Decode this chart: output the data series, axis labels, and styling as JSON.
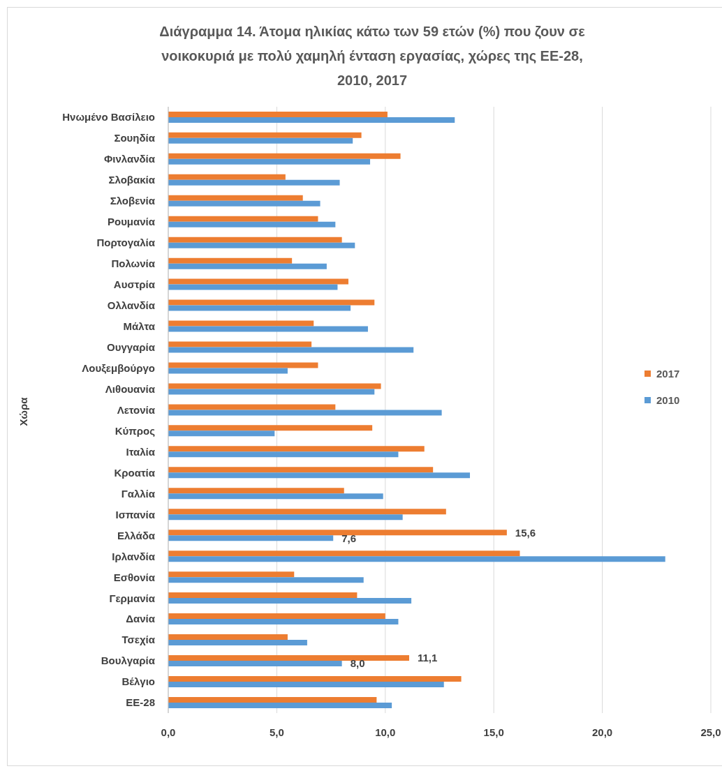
{
  "chart_data": {
    "type": "bar",
    "orientation": "horizontal",
    "title": "Διάγραμμα 14. Άτομα ηλικίας κάτω των 59 ετών (%) που ζουν σε\nνοικοκυριά με πολύ χαμηλή ένταση εργασίας, χώρες της ΕΕ-28,\n2010, 2017",
    "ylabel": "Χώρα",
    "categories": [
      "Ηνωμένο Βασίλειο",
      "Σουηδία",
      "Φινλανδία",
      "Σλοβακία",
      "Σλοβενία",
      "Ρουμανία",
      "Πορτογαλία",
      "Πολωνία",
      "Αυστρία",
      "Ολλανδία",
      "Μάλτα",
      "Ουγγαρία",
      "Λουξεμβούργο",
      "Λιθουανία",
      "Λετονία",
      "Κύπρος",
      "Ιταλία",
      "Κροατία",
      "Γαλλία",
      "Ισπανία",
      "Ελλάδα",
      "Ιρλανδία",
      "Εσθονία",
      "Γερμανία",
      "Δανία",
      "Τσεχία",
      "Βουλγαρία",
      "Βέλγιο",
      "ΕΕ-28"
    ],
    "series": [
      {
        "name": "2017",
        "color": "#ed7d31",
        "values": [
          10.1,
          8.9,
          10.7,
          5.4,
          6.2,
          6.9,
          8.0,
          5.7,
          8.3,
          9.5,
          6.7,
          6.6,
          6.9,
          9.8,
          7.7,
          9.4,
          11.8,
          12.2,
          8.1,
          12.8,
          15.6,
          16.2,
          5.8,
          8.7,
          10.0,
          5.5,
          11.1,
          13.5,
          9.6
        ],
        "value_labels": [
          null,
          null,
          null,
          null,
          null,
          null,
          null,
          null,
          null,
          null,
          null,
          null,
          null,
          null,
          null,
          null,
          null,
          null,
          null,
          null,
          "15,6",
          null,
          null,
          null,
          null,
          null,
          "11,1",
          null,
          null
        ]
      },
      {
        "name": "2010",
        "color": "#5b9bd5",
        "values": [
          13.2,
          8.5,
          9.3,
          7.9,
          7.0,
          7.7,
          8.6,
          7.3,
          7.8,
          8.4,
          9.2,
          11.3,
          5.5,
          9.5,
          12.6,
          4.9,
          10.6,
          13.9,
          9.9,
          10.8,
          7.6,
          22.9,
          9.0,
          11.2,
          10.6,
          6.4,
          8.0,
          12.7,
          10.3
        ],
        "value_labels": [
          null,
          null,
          null,
          null,
          null,
          null,
          null,
          null,
          null,
          null,
          null,
          null,
          null,
          null,
          null,
          null,
          null,
          null,
          null,
          null,
          "7,6",
          null,
          null,
          null,
          null,
          null,
          "8,0",
          null,
          null
        ]
      }
    ],
    "xlim": [
      0,
      25
    ],
    "xticks": [
      {
        "value": 0,
        "label": "0,0"
      },
      {
        "value": 5,
        "label": "5,0"
      },
      {
        "value": 10,
        "label": "10,0"
      },
      {
        "value": 15,
        "label": "15,0"
      },
      {
        "value": 20,
        "label": "20,0"
      },
      {
        "value": 25,
        "label": "25,0"
      }
    ],
    "grid": "x",
    "legend": "right"
  }
}
